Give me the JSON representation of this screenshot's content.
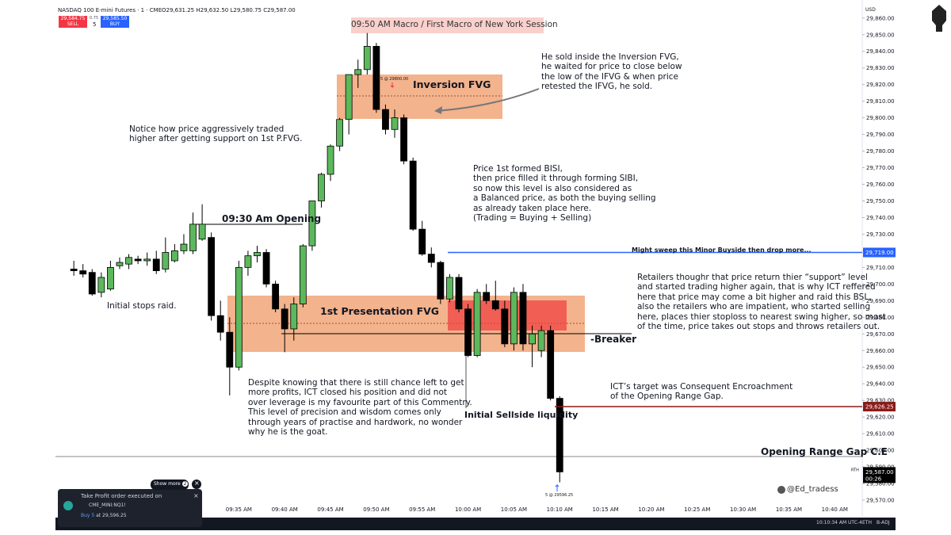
{
  "chart_data": {
    "type": "candlestick",
    "x": [
      "09:17 AM",
      "09:18 AM",
      "09:19 AM",
      "09:20 AM",
      "09:21 AM",
      "09:22 AM",
      "09:23 AM",
      "09:24 AM",
      "09:25 AM",
      "09:26 AM",
      "09:27 AM",
      "09:28 AM",
      "09:29 AM",
      "09:30 AM",
      "09:31 AM",
      "09:32 AM",
      "09:33 AM",
      "09:34 AM",
      "09:35 AM",
      "09:36 AM",
      "09:37 AM",
      "09:38 AM",
      "09:39 AM",
      "09:40 AM",
      "09:41 AM",
      "09:42 AM",
      "09:43 AM",
      "09:44 AM",
      "09:45 AM",
      "09:46 AM",
      "09:47 AM",
      "09:48 AM",
      "09:49 AM",
      "09:50 AM",
      "09:51 AM",
      "09:52 AM",
      "09:53 AM",
      "09:54 AM",
      "09:55 AM",
      "09:56 AM",
      "09:57 AM",
      "09:58 AM",
      "09:59 AM",
      "10:00 AM",
      "10:01 AM",
      "10:02 AM",
      "10:03 AM",
      "10:04 AM",
      "10:05 AM",
      "10:06 AM",
      "10:07 AM",
      "10:08 AM",
      "10:09 AM",
      "10:10 AM"
    ],
    "open": [
      29709,
      29708,
      29707,
      29695,
      29697,
      29711,
      29712,
      29715,
      29714,
      29715,
      29709,
      29714,
      29720,
      29720,
      29727,
      29728,
      29681,
      29671,
      29650,
      29710,
      29717,
      29719,
      29700,
      29685,
      29673,
      29688,
      29723,
      29750,
      29766,
      29783,
      29799,
      29826,
      29829,
      29843,
      29805,
      29793,
      29800,
      29774,
      29733,
      29718,
      29713,
      29691,
      29704,
      29685,
      29657,
      29695,
      29690,
      29685,
      29664,
      29695,
      29664,
      29660,
      29672,
      29631.25
    ],
    "high": [
      29714,
      29712,
      29709,
      29707,
      29714,
      29716,
      29718,
      29717,
      29719,
      29720,
      29728,
      29724,
      29730,
      29743,
      29748,
      29731,
      29690,
      29680,
      29714,
      29720,
      29723,
      29721,
      29702,
      29688,
      29692,
      29724,
      29750,
      29767,
      29784,
      29800,
      29826,
      29835,
      29851,
      29845,
      29808,
      29805,
      29802,
      29776,
      29738,
      29722,
      29714,
      29706,
      29706,
      29688,
      29697,
      29700,
      29702,
      29690,
      29698,
      29700,
      29675,
      29675,
      29675,
      29632.5
    ],
    "low": [
      29705,
      29704,
      29693,
      29692,
      29696,
      29709,
      29709,
      29712,
      29711,
      29706,
      29707,
      29713,
      29718,
      29718,
      29726,
      29678,
      29666,
      29633,
      29648,
      29705,
      29713,
      29698,
      29683,
      29659,
      29666,
      29686,
      29720,
      29746,
      29762,
      29780,
      29790,
      29818,
      29826,
      29803,
      29790,
      29788,
      29772,
      29732,
      29717,
      29710,
      29688,
      29689,
      29683,
      29656,
      29656,
      29688,
      29684,
      29662,
      29660,
      29660,
      29650,
      29656,
      29630,
      29580.75
    ],
    "close": [
      29708,
      29706,
      29694,
      29704,
      29710,
      29713,
      29716,
      29714,
      29715,
      29708,
      29719,
      29720,
      29724,
      29736,
      29736,
      29681,
      29671,
      29650,
      29710,
      29717,
      29719,
      29700,
      29685,
      29673,
      29688,
      29723,
      29750,
      29766,
      29783,
      29799,
      29826,
      29829,
      29843,
      29805,
      29793,
      29800,
      29774,
      29733,
      29718,
      29713,
      29691,
      29704,
      29685,
      29657,
      29695,
      29690,
      29685,
      29664,
      29695,
      29664,
      29670,
      29672,
      29631.25,
      29587
    ],
    "up_color": "#5cb85c",
    "down_color": "#000000",
    "xlim": [
      "09:15 AM",
      "10:43 AM"
    ],
    "xticks": [
      "09:35 AM",
      "09:40 AM",
      "09:45 AM",
      "09:50 AM",
      "09:55 AM",
      "10:00 AM",
      "10:05 AM",
      "10:10 AM",
      "10:15 AM",
      "10:20 AM",
      "10:25 AM",
      "10:30 AM",
      "10:35 AM",
      "10:40 AM"
    ],
    "ylim": [
      29560,
      29868
    ],
    "yticks": [
      {
        "value": 29570,
        "label": "29,570.00"
      },
      {
        "value": 29580,
        "label": "29,580.00"
      },
      {
        "value": 29590,
        "label": "29,590.00"
      },
      {
        "value": 29600,
        "label": "29,600.00"
      },
      {
        "value": 29610,
        "label": "29,610.00"
      },
      {
        "value": 29620,
        "label": "29,620.00"
      },
      {
        "value": 29630,
        "label": "29,630.00"
      },
      {
        "value": 29640,
        "label": "29,640.00"
      },
      {
        "value": 29650,
        "label": "29,650.00"
      },
      {
        "value": 29660,
        "label": "29,660.00"
      },
      {
        "value": 29670,
        "label": "29,670.00"
      },
      {
        "value": 29680,
        "label": "29,680.00"
      },
      {
        "value": 29690,
        "label": "29,690.00"
      },
      {
        "value": 29700,
        "label": "29,700.00"
      },
      {
        "value": 29710,
        "label": "29,710.00"
      },
      {
        "value": 29720,
        "label": "29,720.00"
      },
      {
        "value": 29730,
        "label": "29,730.00"
      },
      {
        "value": 29740,
        "label": "29,740.00"
      },
      {
        "value": 29750,
        "label": "29,750.00"
      },
      {
        "value": 29760,
        "label": "29,760.00"
      },
      {
        "value": 29770,
        "label": "29,770.00"
      },
      {
        "value": 29780,
        "label": "29,780.00"
      },
      {
        "value": 29790,
        "label": "29,790.00"
      },
      {
        "value": 29800,
        "label": "29,800.00"
      },
      {
        "value": 29810,
        "label": "29,810.00"
      },
      {
        "value": 29820,
        "label": "29,820.00"
      },
      {
        "value": 29830,
        "label": "29,830.00"
      },
      {
        "value": 29840,
        "label": "29,840.00"
      },
      {
        "value": 29850,
        "label": "29,850.00"
      },
      {
        "value": 29860,
        "label": "29,860.00"
      }
    ],
    "grid": false,
    "currency": "USD",
    "levels": [
      {
        "value": 29719,
        "label": "29,719.00",
        "color": "#2962ff"
      },
      {
        "value": 29626.25,
        "label": "29,626.25",
        "color": "#8b1a1a"
      }
    ],
    "last_price": {
      "value": 29587,
      "label": "29,587.00",
      "countdown": "00:26",
      "session": "RTH"
    }
  },
  "header": {
    "symbol": "NASDAQ 100 E-mini Futures · 1 · CME",
    "ohlc": "O29,631.25 H29,632.50 L29,580.75 C29,587.00",
    "sell_price": "29,584.75",
    "sell": "SELL",
    "spread": "0.75",
    "qty": "5",
    "buy_price": "29,585.50",
    "buy": "BUY"
  },
  "banner": "09:50 AM Macro / First Macro of New York Session",
  "labels": {
    "inversion": "Inversion FVG",
    "presentation": "1st Presentation FVG",
    "opening": "09:30 Am Opening",
    "breaker": "-Breaker",
    "sellside": "Initial Sellside liquidity",
    "org_ce": "Opening Range Gap C.E",
    "buyside": "Might sweep this Minor Buyside then drop more...",
    "sell_marker": "5 @ 29800.00",
    "buy_marker": "5 @ 29596.25",
    "watermark": "@Ed_tradess"
  },
  "annotations": [
    {
      "lines": [
        "Notice how price aggressively traded",
        "higher after getting support on 1st P.FVG."
      ]
    },
    {
      "lines": [
        "He sold inside the Inversion FVG,",
        "he waited for price to close below",
        "the low of the IFVG & when price",
        "retested the IFVG, he sold."
      ]
    },
    {
      "lines": [
        "Price 1st formed BISI,",
        "then price filled it through forming SIBI,",
        "so now this level is also considered as",
        "a Balanced price, as both the buying selling",
        "as already taken place here.",
        "(Trading = Buying + Selling)"
      ]
    },
    {
      "lines": [
        "Initial stops raid."
      ]
    },
    {
      "lines": [
        "Despite knowing that there is still chance left to get",
        "more profits, ICT closed his position and did not",
        "over leverage is my favourite part of this Commentry.",
        "This level of precision and wisdom comes only",
        "through years of practise and hardwork, no wonder",
        "why he is the goat."
      ]
    },
    {
      "lines": [
        "Retailers thoughr that price return thier “support” level",
        "and started trading higher again, that is why ICT reffered",
        "here that price may come a bit higher and raid this BSL,",
        "also the retailers who are impatient, who started selling",
        "here, places thier stoploss to nearest swing higher, so most",
        "of the time, price takes out stops and throws retailers out."
      ]
    },
    {
      "lines": [
        "ICT’s target was Consequent Encroachment",
        "of the Opening Range Gap."
      ]
    }
  ],
  "toast": {
    "show_more": "Show more",
    "count": "2",
    "title": "Take Profit order executed on",
    "symbol": "CME_MINI:NQ1!",
    "side": "Buy 5",
    "detail": "at 29,596.25"
  },
  "status_bar": {
    "time": "10:10:34 AM UTC-4",
    "eth": "ETH",
    "adj": "B-ADJ"
  }
}
